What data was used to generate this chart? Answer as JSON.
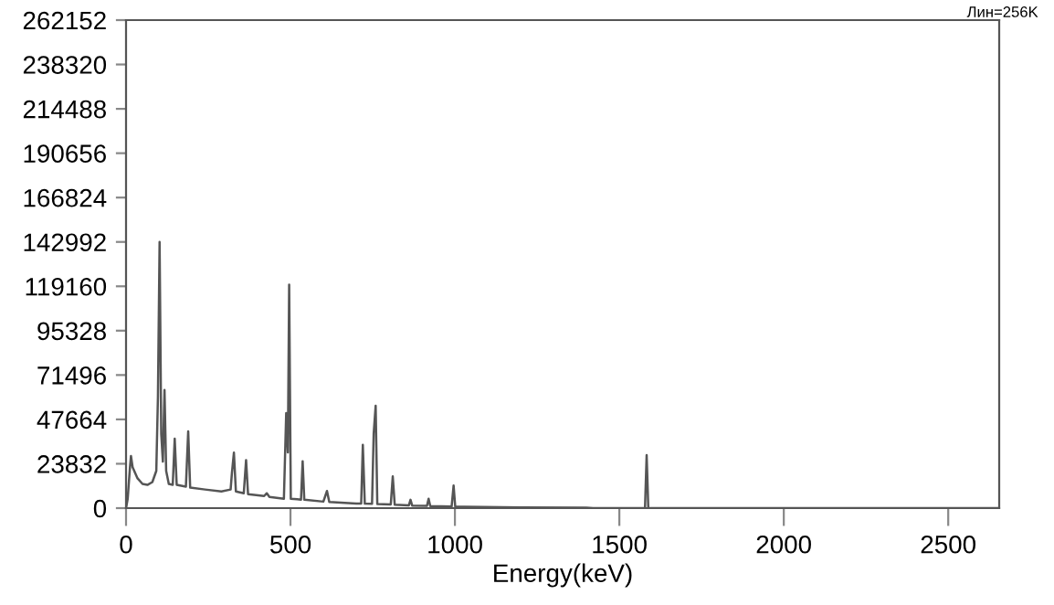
{
  "chart_data": {
    "type": "line",
    "xlabel": "Energy(keV)",
    "annotations": [
      "Лин=256K"
    ],
    "xlim": [
      0,
      2655
    ],
    "xticks": [
      0,
      500,
      1000,
      1500,
      2000,
      2500
    ],
    "ylim": [
      0,
      262152
    ],
    "yticks": [
      0,
      23832,
      47664,
      71496,
      95328,
      119160,
      142992,
      166824,
      190656,
      214488,
      238320,
      262152
    ],
    "grid": false,
    "marker": "none",
    "line_style": "solid",
    "series": [
      {
        "color": "#555555",
        "x": [
          0,
          5,
          12,
          15,
          20,
          35,
          50,
          65,
          80,
          92,
          97,
          102,
          107,
          112,
          117,
          122,
          130,
          142,
          148,
          154,
          182,
          189,
          195,
          240,
          290,
          318,
          322,
          328,
          334,
          358,
          365,
          371,
          420,
          428,
          436,
          480,
          487,
          492,
          496,
          501,
          520,
          532,
          537,
          542,
          600,
          611,
          618,
          700,
          715,
          720,
          726,
          748,
          753,
          759,
          764,
          805,
          811,
          817,
          860,
          865,
          870,
          915,
          920,
          925,
          990,
          996,
          1001,
          1200,
          1400,
          1420,
          1578,
          1583,
          1588,
          2655
        ],
        "values": [
          0,
          5000,
          22000,
          28000,
          22000,
          16000,
          13000,
          12500,
          14000,
          20000,
          60000,
          143000,
          40000,
          25000,
          63500,
          20000,
          13000,
          12500,
          37300,
          12500,
          11500,
          41200,
          11000,
          10000,
          9000,
          10000,
          19000,
          29800,
          9000,
          8000,
          25800,
          7500,
          6500,
          8000,
          6000,
          5000,
          51000,
          30000,
          120000,
          5000,
          4800,
          4500,
          25200,
          4500,
          3500,
          9200,
          3300,
          2500,
          2500,
          34000,
          2400,
          2300,
          40000,
          55000,
          2200,
          2000,
          17000,
          1800,
          1500,
          4500,
          1400,
          1200,
          5000,
          1100,
          800,
          12100,
          750,
          400,
          200,
          0,
          0,
          28500,
          0,
          0
        ]
      }
    ]
  }
}
